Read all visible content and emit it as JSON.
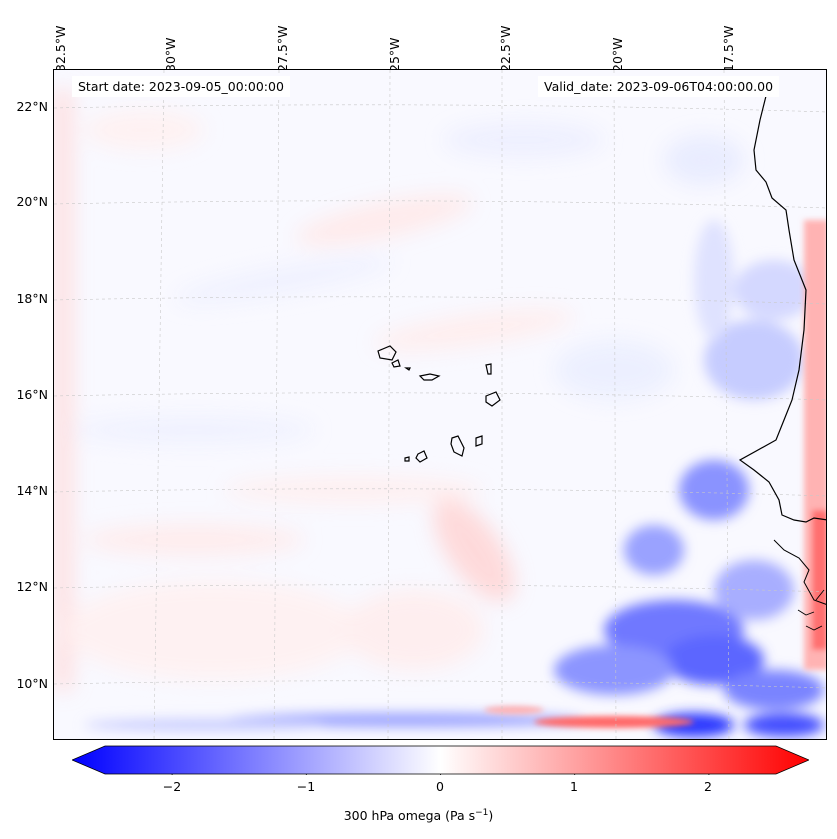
{
  "header": {
    "start_date": "Start date: 2023-09-05_00:00:00",
    "valid_date": "Valid_date: 2023-09-06T04:00:00.00"
  },
  "axes": {
    "lon_labels": [
      "32.5°W",
      "30°W",
      "27.5°W",
      "25°W",
      "22.5°W",
      "20°W",
      "17.5°W"
    ],
    "lat_labels": [
      "22°N",
      "20°N",
      "18°N",
      "16°N",
      "14°N",
      "12°N",
      "10°N"
    ]
  },
  "colorbar": {
    "ticks": [
      "−2",
      "−1",
      "0",
      "1",
      "2"
    ],
    "tick_values": [
      -2,
      -1,
      0,
      1,
      2
    ],
    "range": [
      -2.5,
      2.5
    ],
    "label_main": "300 hPa omega (Pa s",
    "label_exp": "−1",
    "label_close": ")",
    "cmap": "bwr"
  },
  "colors": {
    "negative": "#0000ff",
    "neutral": "#ffffff",
    "positive": "#ff0000"
  }
}
